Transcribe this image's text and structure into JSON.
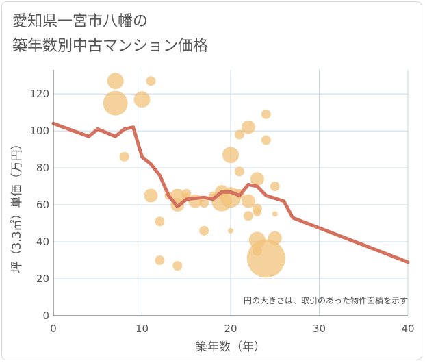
{
  "header": {
    "title_line1": "愛知県一宮市八幡の",
    "title_line2": "築年数別中古マンション価格"
  },
  "chart_data": {
    "type": "scatter",
    "title": "愛知県一宮市八幡の築年数別中古マンション価格",
    "xlabel": "築年数（年）",
    "ylabel": "坪（3.3㎡）単価（万円）",
    "xlim": [
      0,
      40
    ],
    "ylim": [
      0,
      133
    ],
    "xticks": [
      "0",
      "10",
      "20",
      "30",
      "40"
    ],
    "yticks": [
      "0",
      "20",
      "40",
      "60",
      "80",
      "100",
      "120"
    ],
    "xtick_values": [
      0,
      10,
      20,
      30,
      40
    ],
    "ytick_values": [
      0,
      20,
      40,
      60,
      80,
      100,
      120
    ],
    "grid": true,
    "note": "円の大きさは、取引のあった物件面積を示す",
    "colors": {
      "bubble": "#f2c27a",
      "line": "#d4705e",
      "grid": "#c8d7e4"
    },
    "bubbles": [
      {
        "x": 7,
        "y": 127,
        "size": 12
      },
      {
        "x": 7,
        "y": 115,
        "size": 18
      },
      {
        "x": 8,
        "y": 86,
        "size": 7
      },
      {
        "x": 10,
        "y": 117,
        "size": 12
      },
      {
        "x": 11,
        "y": 127,
        "size": 7
      },
      {
        "x": 11,
        "y": 65,
        "size": 10
      },
      {
        "x": 12,
        "y": 51,
        "size": 7
      },
      {
        "x": 12,
        "y": 30,
        "size": 7
      },
      {
        "x": 13,
        "y": 65,
        "size": 6
      },
      {
        "x": 14,
        "y": 65,
        "size": 10
      },
      {
        "x": 14,
        "y": 60,
        "size": 10
      },
      {
        "x": 14,
        "y": 27,
        "size": 7
      },
      {
        "x": 15,
        "y": 66,
        "size": 7
      },
      {
        "x": 15,
        "y": 64,
        "size": 6
      },
      {
        "x": 16,
        "y": 62,
        "size": 10
      },
      {
        "x": 17,
        "y": 61,
        "size": 7
      },
      {
        "x": 17,
        "y": 46,
        "size": 7
      },
      {
        "x": 18,
        "y": 65,
        "size": 6
      },
      {
        "x": 19,
        "y": 67,
        "size": 10
      },
      {
        "x": 19,
        "y": 62,
        "size": 15
      },
      {
        "x": 20,
        "y": 64,
        "size": 15
      },
      {
        "x": 20,
        "y": 87,
        "size": 12
      },
      {
        "x": 20,
        "y": 46,
        "size": 4
      },
      {
        "x": 21,
        "y": 98,
        "size": 7
      },
      {
        "x": 21,
        "y": 78,
        "size": 7
      },
      {
        "x": 21,
        "y": 66,
        "size": 7
      },
      {
        "x": 22,
        "y": 102,
        "size": 10
      },
      {
        "x": 22,
        "y": 62,
        "size": 10
      },
      {
        "x": 22,
        "y": 54,
        "size": 7
      },
      {
        "x": 23,
        "y": 74,
        "size": 10
      },
      {
        "x": 23,
        "y": 58,
        "size": 7
      },
      {
        "x": 23,
        "y": 56,
        "size": 6
      },
      {
        "x": 23,
        "y": 41,
        "size": 12
      },
      {
        "x": 23,
        "y": 35,
        "size": 7
      },
      {
        "x": 24,
        "y": 109,
        "size": 7
      },
      {
        "x": 24,
        "y": 95,
        "size": 7
      },
      {
        "x": 24,
        "y": 31,
        "size": 28
      },
      {
        "x": 25,
        "y": 70,
        "size": 7
      },
      {
        "x": 25,
        "y": 55,
        "size": 4
      },
      {
        "x": 25,
        "y": 42,
        "size": 10
      }
    ],
    "line": {
      "x": [
        0,
        4,
        5,
        7,
        8,
        9,
        10,
        11,
        12,
        13,
        14,
        15,
        17,
        18,
        19,
        20,
        21,
        22,
        23,
        24,
        26,
        27,
        40
      ],
      "y": [
        104,
        97,
        101,
        97,
        101,
        102,
        86,
        82,
        76,
        65,
        59,
        63,
        64,
        63,
        67,
        67,
        65,
        71,
        70,
        65,
        62,
        53,
        29
      ]
    }
  }
}
